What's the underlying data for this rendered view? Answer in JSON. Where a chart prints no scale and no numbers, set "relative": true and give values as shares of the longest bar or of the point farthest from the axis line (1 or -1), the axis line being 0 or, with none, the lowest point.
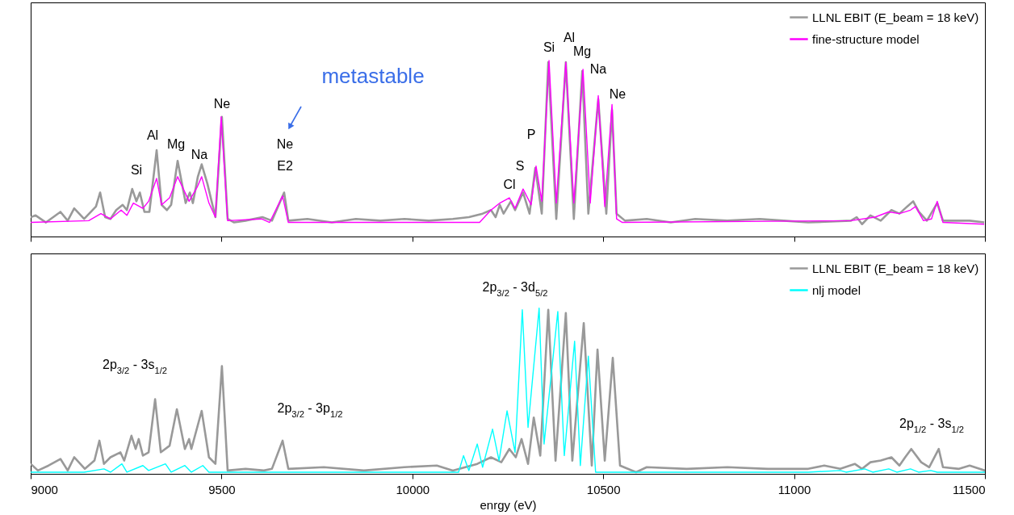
{
  "chart_data": [
    {
      "type": "line",
      "relative": true,
      "xlim": [
        9000,
        11500
      ],
      "xticks": [
        9000,
        9500,
        10000,
        10500,
        11000,
        11500
      ],
      "tick_labels": false,
      "legend": "top right",
      "annotations": [
        "Si",
        "Al",
        "Mg",
        "Na",
        "Ne",
        "Ne",
        "E2",
        "Cl",
        "S",
        "P",
        "Si",
        "Al",
        "Mg",
        "Na",
        "Ne",
        "metastable"
      ],
      "series": [
        {
          "name": "LLNL EBIT (E_beam = 18 keV)",
          "color": "#999999",
          "x": [
            9000,
            9013,
            9040,
            9078,
            9097,
            9114,
            9140,
            9171,
            9182,
            9195,
            9209,
            9224,
            9241,
            9252,
            9266,
            9277,
            9286,
            9298,
            9311,
            9330,
            9343,
            9357,
            9368,
            9385,
            9406,
            9417,
            9425,
            9438,
            9448,
            9463,
            9484,
            9501,
            9516,
            9533,
            9563,
            9607,
            9632,
            9664,
            9675,
            9725,
            9789,
            9852,
            9916,
            9979,
            10043,
            10106,
            10148,
            10184,
            10206,
            10218,
            10229,
            10239,
            10258,
            10269,
            10290,
            10307,
            10322,
            10339,
            10356,
            10377,
            10402,
            10423,
            10445,
            10461,
            10487,
            10508,
            10523,
            10535,
            10557,
            10614,
            10677,
            10741,
            10825,
            10910,
            10973,
            11037,
            11149,
            11164,
            11178,
            11200,
            11227,
            11255,
            11276,
            11291,
            11312,
            11327,
            11348,
            11375,
            11390,
            11432,
            11460,
            11498
          ],
          "values": [
            0.11,
            0.12,
            0.08,
            0.14,
            0.09,
            0.16,
            0.1,
            0.17,
            0.25,
            0.11,
            0.1,
            0.15,
            0.18,
            0.15,
            0.27,
            0.2,
            0.25,
            0.14,
            0.14,
            0.49,
            0.18,
            0.15,
            0.18,
            0.43,
            0.19,
            0.25,
            0.19,
            0.34,
            0.41,
            0.3,
            0.11,
            0.68,
            0.1,
            0.08,
            0.09,
            0.11,
            0.09,
            0.25,
            0.09,
            0.1,
            0.08,
            0.1,
            0.09,
            0.1,
            0.09,
            0.1,
            0.11,
            0.13,
            0.15,
            0.11,
            0.18,
            0.13,
            0.2,
            0.15,
            0.25,
            0.13,
            0.39,
            0.13,
            0.99,
            0.1,
            0.99,
            0.1,
            0.94,
            0.13,
            0.78,
            0.13,
            0.72,
            0.13,
            0.09,
            0.1,
            0.08,
            0.1,
            0.09,
            0.1,
            0.09,
            0.08,
            0.09,
            0.11,
            0.07,
            0.12,
            0.09,
            0.15,
            0.13,
            0.16,
            0.2,
            0.14,
            0.09,
            0.19,
            0.09,
            0.09,
            0.09,
            0.08
          ]
        },
        {
          "name": "fine-structure model",
          "color": "#ff00ff",
          "x": [
            9000,
            9152,
            9184,
            9209,
            9237,
            9252,
            9269,
            9294,
            9309,
            9330,
            9343,
            9364,
            9385,
            9415,
            9436,
            9448,
            9467,
            9484,
            9499,
            9516,
            9605,
            9626,
            9660,
            9675,
            10176,
            10206,
            10229,
            10254,
            10269,
            10290,
            10311,
            10324,
            10339,
            10358,
            10377,
            10402,
            10423,
            10447,
            10466,
            10487,
            10504,
            10523,
            10535,
            10550,
            11149,
            11212,
            11248,
            11276,
            11305,
            11318,
            11339,
            11360,
            11375,
            11390,
            11498
          ],
          "values": [
            0.08,
            0.09,
            0.13,
            0.1,
            0.15,
            0.12,
            0.19,
            0.16,
            0.2,
            0.33,
            0.18,
            0.22,
            0.34,
            0.2,
            0.28,
            0.34,
            0.19,
            0.11,
            0.68,
            0.09,
            0.1,
            0.08,
            0.23,
            0.08,
            0.08,
            0.15,
            0.19,
            0.22,
            0.16,
            0.27,
            0.18,
            0.4,
            0.2,
            1.0,
            0.19,
            0.99,
            0.19,
            0.95,
            0.19,
            0.8,
            0.17,
            0.75,
            0.1,
            0.08,
            0.09,
            0.11,
            0.14,
            0.13,
            0.15,
            0.17,
            0.09,
            0.1,
            0.2,
            0.08,
            0.07
          ]
        }
      ]
    },
    {
      "type": "line",
      "relative": true,
      "xlim": [
        9000,
        11500
      ],
      "xticks": [
        9000,
        9500,
        10000,
        10500,
        11000,
        11500
      ],
      "xlabel": "enrgy (eV)",
      "tick_labels": "x",
      "legend": "top right",
      "annotations": [
        "2p$_{3/2}$ - 3s$_{1/2}$",
        "2p$_{3/2}$ - 3p$_{1/2}$",
        "2p$_{3/2}$ - 3d$_{5/2}$",
        "2p$_{1/2}$ - 3s$_{1/2}$"
      ],
      "series": [
        {
          "name": "LLNL EBIT (E_beam = 18 keV)",
          "color": "#999999",
          "x": [
            9000,
            9019,
            9047,
            9078,
            9097,
            9114,
            9142,
            9167,
            9180,
            9192,
            9209,
            9235,
            9245,
            9264,
            9275,
            9283,
            9294,
            9309,
            9326,
            9341,
            9364,
            9383,
            9404,
            9415,
            9421,
            9448,
            9467,
            9484,
            9501,
            9516,
            9563,
            9611,
            9632,
            9660,
            9675,
            9768,
            9873,
            9979,
            10064,
            10106,
            10170,
            10206,
            10233,
            10254,
            10271,
            10286,
            10303,
            10318,
            10335,
            10356,
            10375,
            10402,
            10419,
            10449,
            10470,
            10485,
            10504,
            10525,
            10544,
            10586,
            10614,
            10719,
            10825,
            10931,
            11037,
            11079,
            11121,
            11159,
            11178,
            11200,
            11227,
            11255,
            11276,
            11291,
            11307,
            11333,
            11354,
            11379,
            11390,
            11432,
            11460,
            11500
          ],
          "values": [
            0.06,
            0.02,
            0.05,
            0.09,
            0.02,
            0.1,
            0.03,
            0.08,
            0.2,
            0.06,
            0.1,
            0.13,
            0.08,
            0.23,
            0.15,
            0.21,
            0.11,
            0.13,
            0.45,
            0.13,
            0.17,
            0.39,
            0.15,
            0.21,
            0.15,
            0.38,
            0.1,
            0.06,
            0.65,
            0.02,
            0.03,
            0.02,
            0.03,
            0.2,
            0.03,
            0.04,
            0.02,
            0.04,
            0.05,
            0.02,
            0.06,
            0.1,
            0.07,
            0.15,
            0.1,
            0.21,
            0.06,
            0.34,
            0.11,
            0.99,
            0.08,
            0.97,
            0.08,
            0.91,
            0.05,
            0.75,
            0.08,
            0.7,
            0.05,
            0.01,
            0.04,
            0.03,
            0.04,
            0.03,
            0.03,
            0.05,
            0.03,
            0.06,
            0.03,
            0.07,
            0.08,
            0.1,
            0.05,
            0.1,
            0.15,
            0.07,
            0.04,
            0.15,
            0.04,
            0.03,
            0.05,
            0.02
          ]
        },
        {
          "name": "nlj model",
          "color": "#00ffff",
          "x": [
            9000,
            9140,
            9192,
            9209,
            9239,
            9252,
            9294,
            9309,
            9353,
            9368,
            9404,
            9421,
            9451,
            9467,
            10121,
            10134,
            10148,
            10170,
            10184,
            10210,
            10227,
            10248,
            10269,
            10288,
            10303,
            10332,
            10345,
            10381,
            10398,
            10425,
            10440,
            10461,
            10480,
            11037,
            11121,
            11136,
            11185,
            11206,
            11248,
            11269,
            11305,
            11326,
            11358,
            11375,
            11500
          ],
          "values": [
            0.01,
            0.01,
            0.03,
            0.01,
            0.06,
            0.01,
            0.05,
            0.02,
            0.06,
            0.01,
            0.05,
            0.01,
            0.05,
            0.01,
            0.01,
            0.11,
            0.02,
            0.18,
            0.04,
            0.27,
            0.08,
            0.38,
            0.13,
            0.99,
            0.28,
            1.0,
            0.18,
            0.98,
            0.11,
            0.8,
            0.05,
            0.71,
            0.01,
            0.01,
            0.02,
            0.01,
            0.03,
            0.01,
            0.03,
            0.01,
            0.03,
            0.01,
            0.02,
            0.01,
            0.01
          ]
        }
      ]
    }
  ]
}
